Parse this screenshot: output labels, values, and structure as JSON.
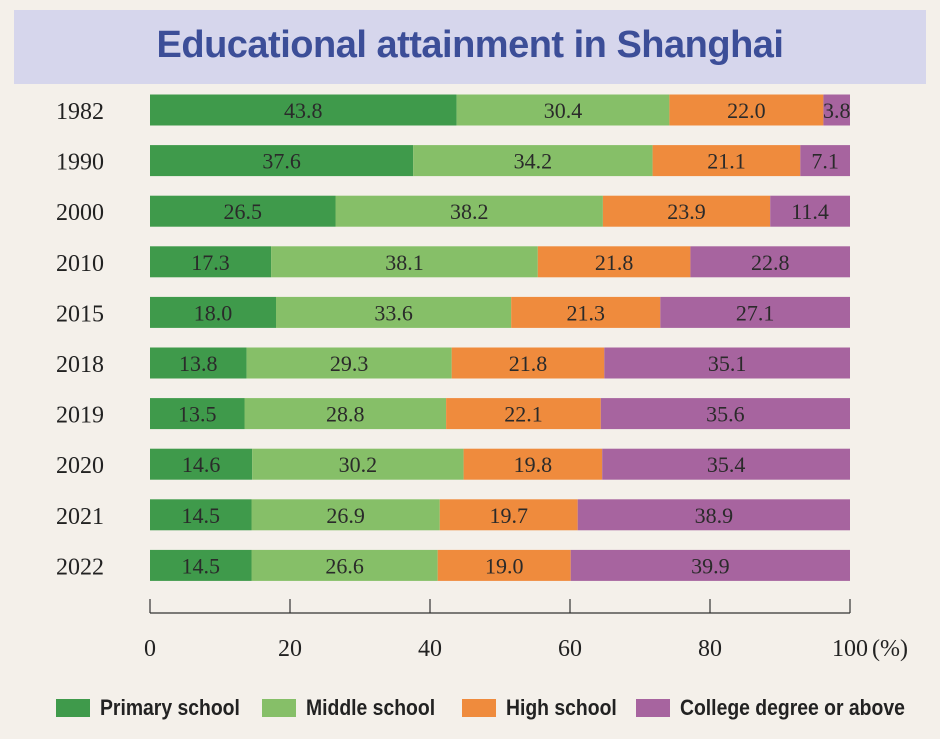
{
  "chart_data": {
    "type": "bar",
    "stacked": true,
    "orientation": "horizontal",
    "title": "Educational attainment in Shanghai",
    "categories": [
      "1982",
      "1990",
      "2000",
      "2010",
      "2015",
      "2018",
      "2019",
      "2020",
      "2021",
      "2022"
    ],
    "series": [
      {
        "name": "Primary school",
        "color": "#3f9a4b",
        "values": [
          43.8,
          37.6,
          26.5,
          17.3,
          18.0,
          13.8,
          13.5,
          14.6,
          14.5,
          14.5
        ]
      },
      {
        "name": "Middle school",
        "color": "#86bf68",
        "values": [
          30.4,
          34.2,
          38.2,
          38.1,
          33.6,
          29.3,
          28.8,
          30.2,
          26.9,
          26.6
        ]
      },
      {
        "name": "High school",
        "color": "#ef8b3d",
        "values": [
          22.0,
          21.1,
          23.9,
          21.8,
          21.3,
          21.8,
          22.1,
          19.8,
          19.7,
          19.0
        ]
      },
      {
        "name": "College degree or above",
        "color": "#a7649f",
        "values": [
          3.8,
          7.1,
          11.4,
          22.8,
          27.1,
          35.1,
          35.6,
          35.4,
          38.9,
          39.9
        ]
      }
    ],
    "xlim": [
      0,
      100
    ],
    "xticks": [
      "0",
      "20",
      "40",
      "60",
      "80",
      "100"
    ],
    "xunit": "(%)",
    "legend_position": "bottom"
  }
}
